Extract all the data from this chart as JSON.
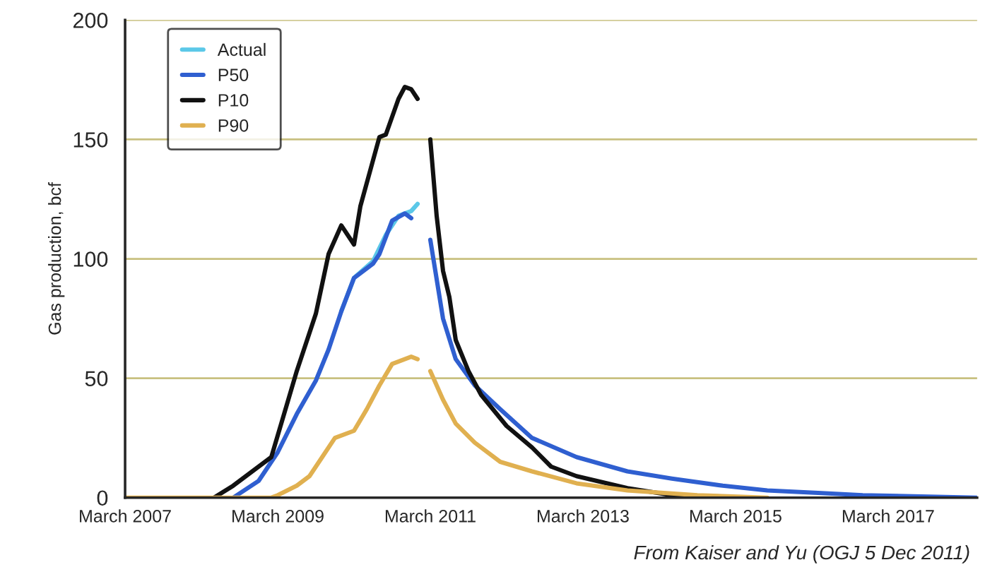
{
  "chart_data": {
    "type": "line",
    "ylabel": "Gas production, bcf",
    "annotations": [
      "From Kaiser and Yu (OGJ 5 Dec 2011)"
    ],
    "xlim": [
      "2007-03",
      "2018-05"
    ],
    "xticks": [
      {
        "value": "2007-03",
        "label": "March 2007"
      },
      {
        "value": "2009-03",
        "label": "March 2009"
      },
      {
        "value": "2011-03",
        "label": "March 2011"
      },
      {
        "value": "2013-03",
        "label": "March 2013"
      },
      {
        "value": "2015-03",
        "label": "March 2015"
      },
      {
        "value": "2017-03",
        "label": "March 2017"
      }
    ],
    "ylim": [
      0,
      200
    ],
    "yticks": [
      0,
      50,
      100,
      150,
      200
    ],
    "grid": "y",
    "legend": "top left",
    "marker": "none",
    "line_style": "solid",
    "series": [
      {
        "name": "Actual",
        "color": "#5bc8e8",
        "x": [
          "2010-01",
          "2010-03",
          "2010-06",
          "2010-08",
          "2010-10",
          "2010-12",
          "2011-01"
        ],
        "values": [
          78,
          92,
          99,
          110,
          118,
          120,
          123
        ]
      },
      {
        "name": "P50",
        "color": "#2f5fd0",
        "x": [
          "2008-08",
          "2008-12",
          "2009-03",
          "2009-06",
          "2009-09",
          "2009-11",
          "2010-01",
          "2010-03",
          "2010-06",
          "2010-07",
          "2010-09",
          "2010-11",
          "2010-12",
          "2011-02",
          "2011-03",
          "2011-05",
          "2011-07",
          "2011-10",
          "2012-02",
          "2012-07",
          "2013-02",
          "2013-10",
          "2014-05",
          "2015-01",
          "2015-08",
          "2016-04",
          "2016-11",
          "2018-05"
        ],
        "values": [
          0,
          7,
          19,
          35,
          49,
          62,
          78,
          92,
          98,
          102,
          116,
          119,
          117,
          null,
          108,
          75,
          58,
          47,
          37,
          25,
          17,
          11,
          8,
          5,
          3,
          2,
          1,
          0
        ]
      },
      {
        "name": "P10",
        "color": "#111111",
        "x": [
          "2008-05",
          "2008-08",
          "2009-02",
          "2009-04",
          "2009-06",
          "2009-09",
          "2009-11",
          "2010-01",
          "2010-03",
          "2010-04",
          "2010-07",
          "2010-08",
          "2010-10",
          "2010-11",
          "2010-12",
          "2011-01",
          "2011-02",
          "2011-03",
          "2011-04",
          "2011-05",
          "2011-06",
          "2011-07",
          "2011-09",
          "2011-11",
          "2012-03",
          "2012-07",
          "2012-10",
          "2013-02",
          "2013-10",
          "2014-05",
          "2014-11"
        ],
        "values": [
          0,
          5,
          17,
          35,
          53,
          77,
          102,
          114,
          106,
          122,
          151,
          152,
          167,
          172,
          171,
          167,
          null,
          150,
          118,
          95,
          84,
          66,
          53,
          43,
          30,
          21,
          13,
          9,
          4,
          1,
          0
        ]
      },
      {
        "name": "P90",
        "color": "#e0b050",
        "x": [
          "2007-03",
          "2009-02",
          "2009-03",
          "2009-06",
          "2009-08",
          "2009-10",
          "2009-12",
          "2010-03",
          "2010-05",
          "2010-07",
          "2010-09",
          "2010-12",
          "2011-01",
          "2011-02",
          "2011-03",
          "2011-05",
          "2011-07",
          "2011-10",
          "2012-02",
          "2012-07",
          "2013-02",
          "2013-10",
          "2014-09",
          "2015-08"
        ],
        "values": [
          0,
          0,
          1,
          5,
          9,
          17,
          25,
          28,
          37,
          47,
          56,
          59,
          58,
          null,
          53,
          41,
          31,
          23,
          15,
          11,
          6,
          3,
          1,
          0
        ]
      }
    ]
  }
}
